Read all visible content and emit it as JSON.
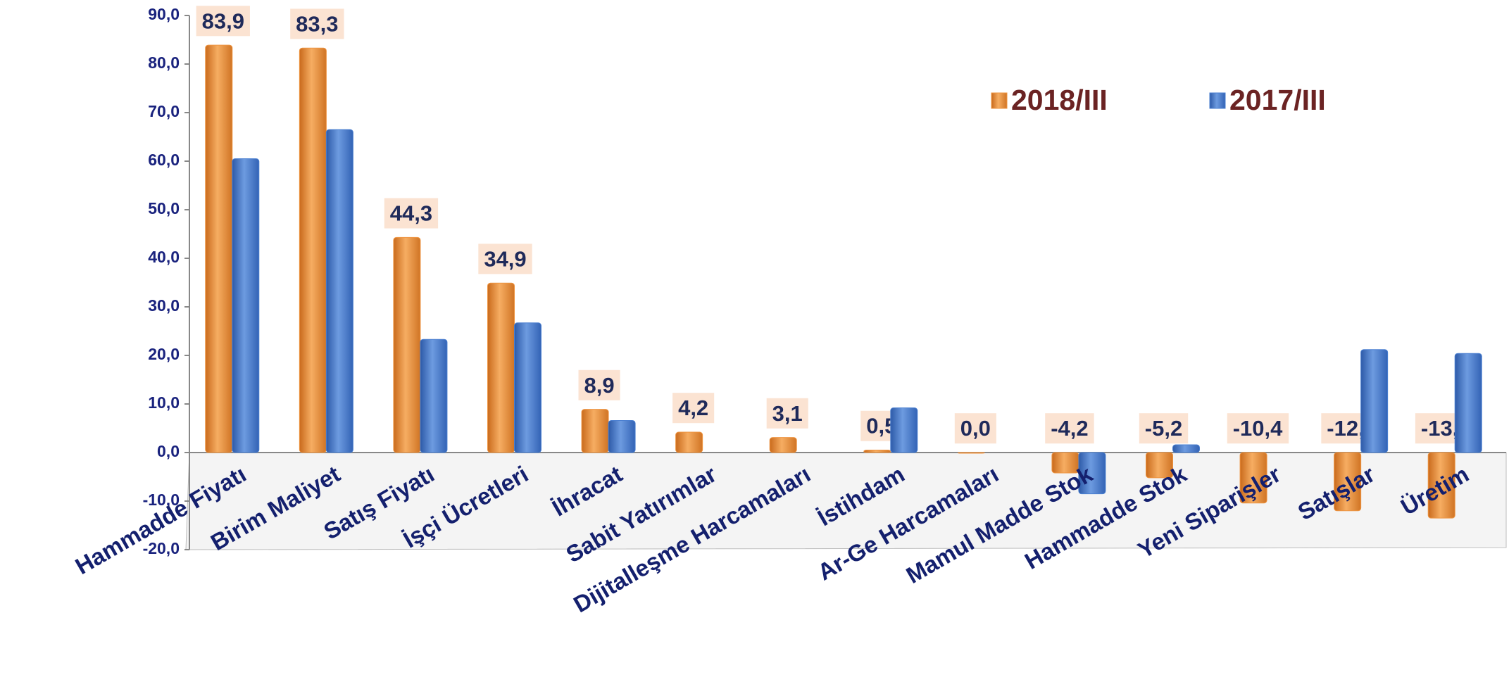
{
  "chart_data": {
    "type": "bar",
    "categories": [
      "Hammadde Fiyatı",
      "Birim Maliyet",
      "Satış Fiyatı",
      "İşçi Ücretleri",
      "İhracat",
      "Sabit Yatırımlar",
      "Dijitalleşme Harcamaları",
      "İstihdam",
      "Ar-Ge Harcamaları",
      "Mamul Madde Stok",
      "Hammadde Stok",
      "Yeni Siparişler",
      "Satışlar",
      "Üretim"
    ],
    "series": [
      {
        "name": "2018/III",
        "color": "#ee9440",
        "values": [
          83.9,
          83.3,
          44.3,
          34.9,
          8.9,
          4.2,
          3.1,
          0.5,
          0.0,
          -4.2,
          -5.2,
          -10.4,
          -12.0,
          -13.5
        ],
        "value_labels": [
          "83,9",
          "83,3",
          "44,3",
          "34,9",
          "8,9",
          "4,2",
          "3,1",
          "0,5",
          "0,0",
          "-4,2",
          "-5,2",
          "-10,4",
          "-12,0",
          "-13,5"
        ]
      },
      {
        "name": "2017/III",
        "color": "#4a7fd0",
        "values": [
          60.5,
          66.5,
          23.3,
          26.7,
          6.6,
          null,
          null,
          9.2,
          null,
          -8.5,
          1.6,
          null,
          21.2,
          20.4
        ]
      }
    ],
    "ylim": [
      -20,
      90
    ],
    "yticks": [
      {
        "value": 90,
        "label": "90,0"
      },
      {
        "value": 80,
        "label": "80,0"
      },
      {
        "value": 70,
        "label": "70,0"
      },
      {
        "value": 60,
        "label": "60,0"
      },
      {
        "value": 50,
        "label": "50,0"
      },
      {
        "value": 40,
        "label": "40,0"
      },
      {
        "value": 30,
        "label": "30,0"
      },
      {
        "value": 20,
        "label": "20,0"
      },
      {
        "value": 10,
        "label": "10,0"
      },
      {
        "value": 0,
        "label": "0,0"
      },
      {
        "value": -10,
        "label": "-10,0"
      },
      {
        "value": -20,
        "label": "-20,0"
      }
    ],
    "legend": "top-right"
  }
}
